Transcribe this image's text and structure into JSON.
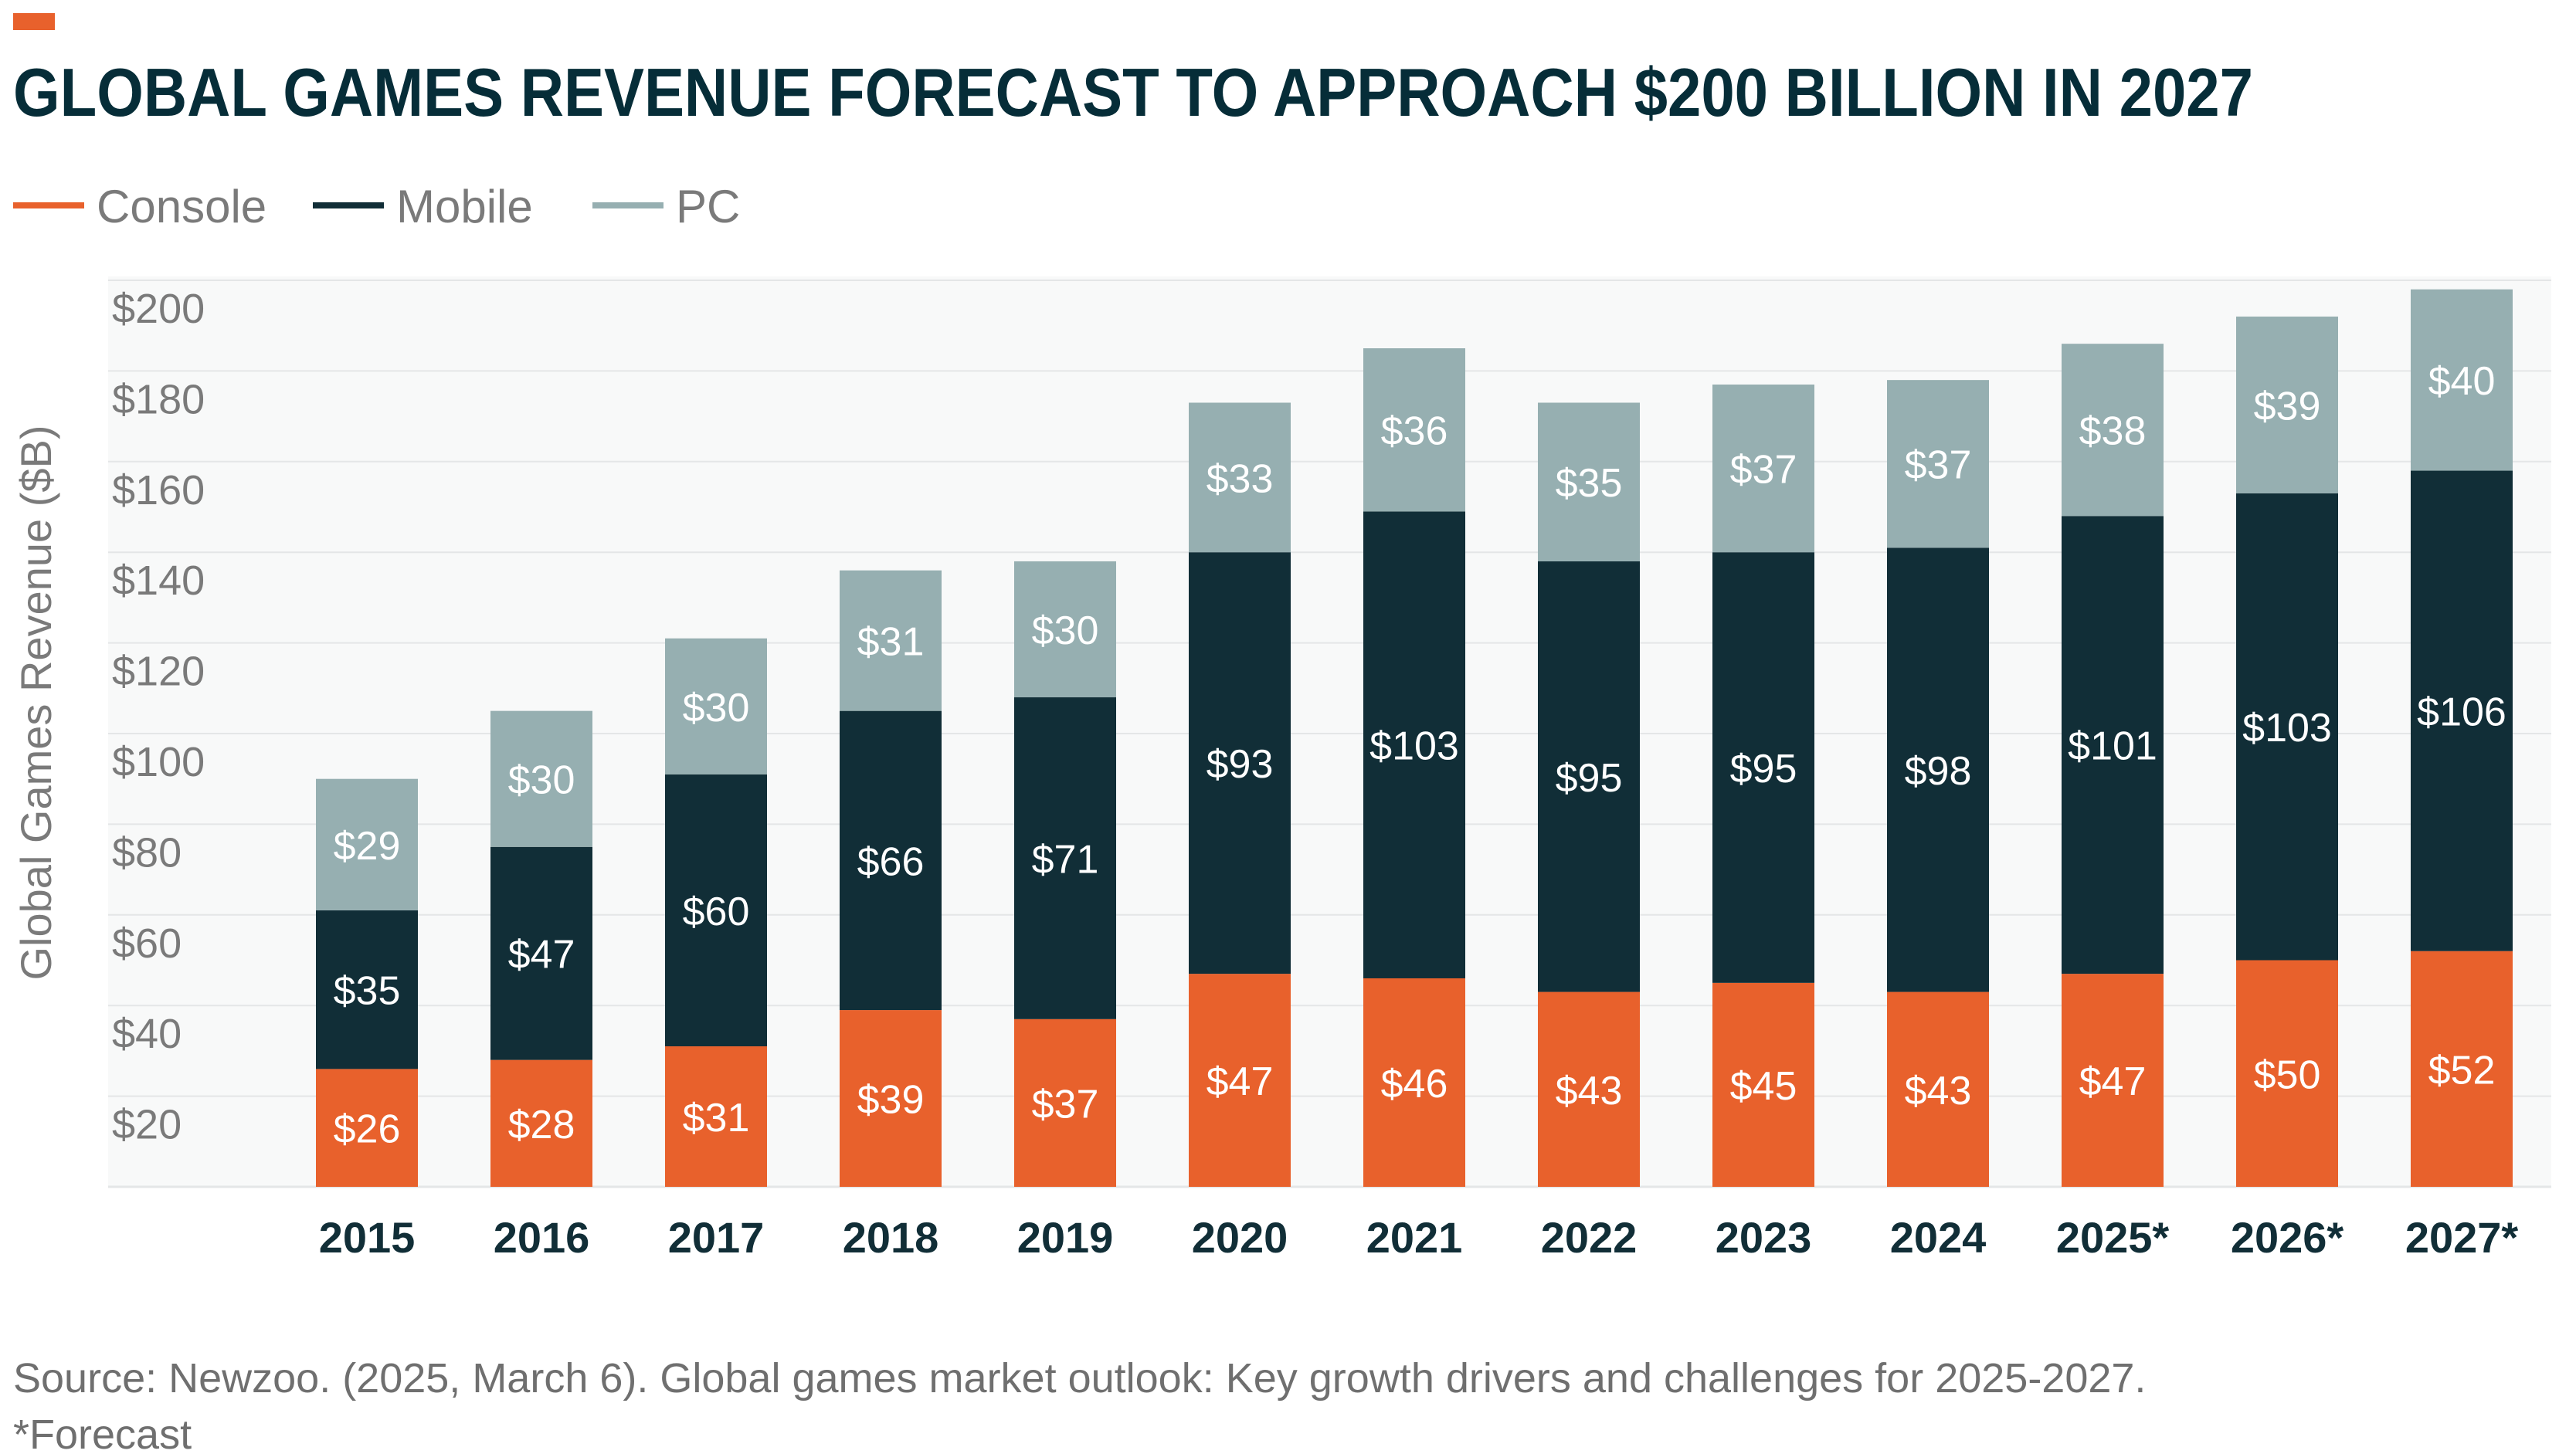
{
  "colors": {
    "accent": "#E8612C",
    "console": "#E8612C",
    "mobile": "#112E37",
    "pc": "#96AFB1",
    "title": "#062D38",
    "plot_bg": "#F8F9F9",
    "grid": "#E4E6E7"
  },
  "chart_data": {
    "type": "bar",
    "stacked": true,
    "title": "GLOBAL GAMES REVENUE FORECAST TO APPROACH $200 BILLION IN 2027",
    "ylabel": "Global Games Revenue ($B)",
    "xlabel": "",
    "ylim": [
      0,
      200
    ],
    "yticks": [
      20,
      40,
      60,
      80,
      100,
      120,
      140,
      160,
      180,
      200
    ],
    "ytick_labels": [
      "$20",
      "$40",
      "$60",
      "$80",
      "$100",
      "$120",
      "$140",
      "$160",
      "$180",
      "$200"
    ],
    "grid": true,
    "legend_placement": "top-left",
    "categories": [
      "2015",
      "2016",
      "2017",
      "2018",
      "2019",
      "2020",
      "2021",
      "2022",
      "2023",
      "2024",
      "2025*",
      "2026*",
      "2027*"
    ],
    "series": [
      {
        "name": "Console",
        "color": "#E8612C",
        "values": [
          26,
          28,
          31,
          39,
          37,
          47,
          46,
          43,
          45,
          43,
          47,
          50,
          52
        ]
      },
      {
        "name": "Mobile",
        "color": "#112E37",
        "values": [
          35,
          47,
          60,
          66,
          71,
          93,
          103,
          95,
          95,
          98,
          101,
          103,
          106
        ]
      },
      {
        "name": "PC",
        "color": "#96AFB1",
        "values": [
          29,
          30,
          30,
          31,
          30,
          33,
          36,
          35,
          37,
          37,
          38,
          39,
          40
        ]
      }
    ],
    "value_label_prefix": "$"
  },
  "footer": {
    "source": "Source: Newzoo. (2025, March 6). Global games market outlook: Key growth drivers and challenges for 2025-2027.",
    "note": "*Forecast"
  }
}
